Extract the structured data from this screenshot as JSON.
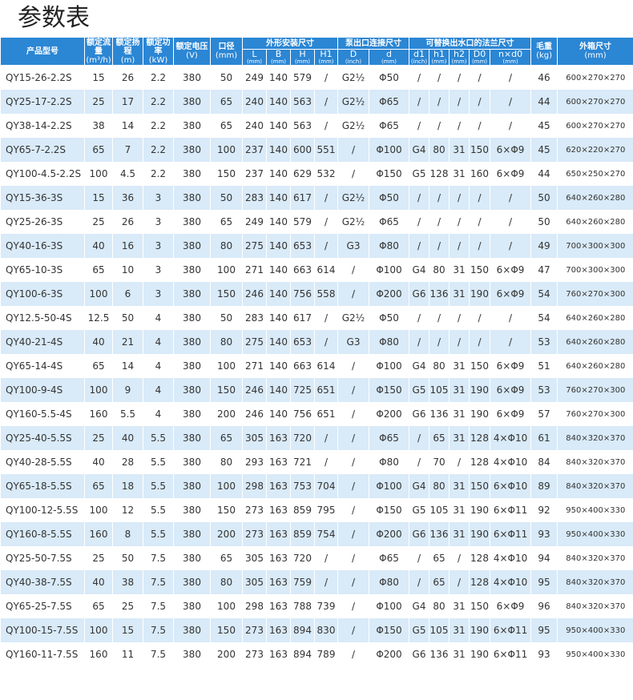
{
  "title": "参数表",
  "table": {
    "columns": [
      {
        "label": "产品型号"
      },
      {
        "label": "额定流量",
        "unit": "(m³/h)"
      },
      {
        "label": "额定扬程",
        "unit": "(m)"
      },
      {
        "label": "额定功率",
        "unit": "(kW)"
      },
      {
        "label": "额定电压",
        "unit": "(V)"
      },
      {
        "label": "口径",
        "unit": "(mm)"
      },
      {
        "label": "外形安装尺寸",
        "sub": [
          {
            "label": "L",
            "unit": "(mm)"
          },
          {
            "label": "B",
            "unit": "(mm)"
          },
          {
            "label": "H",
            "unit": "(mm)"
          },
          {
            "label": "H1",
            "unit": "(mm)"
          }
        ]
      },
      {
        "label": "泵出口连接尺寸",
        "sub": [
          {
            "label": "D",
            "unit": "(inch)"
          },
          {
            "label": "d",
            "unit": "(mm)"
          }
        ]
      },
      {
        "label": "可替换出水口的法兰尺寸",
        "sub": [
          {
            "label": "d1",
            "unit": "(inch)"
          },
          {
            "label": "h1",
            "unit": "(mm)"
          },
          {
            "label": "h2",
            "unit": "(mm)"
          },
          {
            "label": "D0",
            "unit": "(mm)"
          },
          {
            "label": "n×d0",
            "unit": "(mm)"
          }
        ]
      },
      {
        "label": "毛重",
        "unit": "(kg)"
      },
      {
        "label": "外箱尺寸",
        "unit": "(mm)"
      }
    ],
    "rows": [
      [
        "QY15-26-2.2S",
        "15",
        "26",
        "2.2",
        "380",
        "50",
        "249",
        "140",
        "579",
        "/",
        "G2½",
        "Φ50",
        "/",
        "/",
        "/",
        "/",
        "/",
        "46",
        "600×270×270"
      ],
      [
        "QY25-17-2.2S",
        "25",
        "17",
        "2.2",
        "380",
        "65",
        "240",
        "140",
        "563",
        "/",
        "G2½",
        "Φ65",
        "/",
        "/",
        "/",
        "/",
        "/",
        "44",
        "600×270×270"
      ],
      [
        "QY38-14-2.2S",
        "38",
        "14",
        "2.2",
        "380",
        "65",
        "240",
        "140",
        "563",
        "/",
        "G2½",
        "Φ65",
        "/",
        "/",
        "/",
        "/",
        "/",
        "45",
        "600×270×270"
      ],
      [
        "QY65-7-2.2S",
        "65",
        "7",
        "2.2",
        "380",
        "100",
        "237",
        "140",
        "600",
        "551",
        "/",
        "Φ100",
        "G4",
        "80",
        "31",
        "150",
        "6×Φ9",
        "45",
        "620×220×270"
      ],
      [
        "QY100-4.5-2.2S",
        "100",
        "4.5",
        "2.2",
        "380",
        "150",
        "237",
        "140",
        "629",
        "532",
        "/",
        "Φ150",
        "G5",
        "128",
        "31",
        "160",
        "6×Φ9",
        "44",
        "650×250×270"
      ],
      [
        "QY15-36-3S",
        "15",
        "36",
        "3",
        "380",
        "50",
        "283",
        "140",
        "617",
        "/",
        "G2½",
        "Φ50",
        "/",
        "/",
        "/",
        "/",
        "/",
        "50",
        "640×260×280"
      ],
      [
        "QY25-26-3S",
        "25",
        "26",
        "3",
        "380",
        "65",
        "249",
        "140",
        "579",
        "/",
        "G2½",
        "Φ65",
        "/",
        "/",
        "/",
        "/",
        "/",
        "50",
        "640×260×280"
      ],
      [
        "QY40-16-3S",
        "40",
        "16",
        "3",
        "380",
        "80",
        "275",
        "140",
        "653",
        "/",
        "G3",
        "Φ80",
        "/",
        "/",
        "/",
        "/",
        "/",
        "49",
        "700×300×300"
      ],
      [
        "QY65-10-3S",
        "65",
        "10",
        "3",
        "380",
        "100",
        "271",
        "140",
        "663",
        "614",
        "/",
        "Φ100",
        "G4",
        "80",
        "31",
        "150",
        "6×Φ9",
        "47",
        "700×300×300"
      ],
      [
        "QY100-6-3S",
        "100",
        "6",
        "3",
        "380",
        "150",
        "246",
        "140",
        "756",
        "558",
        "/",
        "Φ200",
        "G6",
        "136",
        "31",
        "190",
        "6×Φ9",
        "54",
        "760×270×300"
      ],
      [
        "QY12.5-50-4S",
        "12.5",
        "50",
        "4",
        "380",
        "50",
        "283",
        "140",
        "617",
        "/",
        "G2½",
        "Φ50",
        "/",
        "/",
        "/",
        "/",
        "/",
        "54",
        "640×260×280"
      ],
      [
        "QY40-21-4S",
        "40",
        "21",
        "4",
        "380",
        "80",
        "275",
        "140",
        "653",
        "/",
        "G3",
        "Φ80",
        "/",
        "/",
        "/",
        "/",
        "/",
        "53",
        "640×260×280"
      ],
      [
        "QY65-14-4S",
        "65",
        "14",
        "4",
        "380",
        "100",
        "271",
        "140",
        "663",
        "614",
        "/",
        "Φ100",
        "G4",
        "80",
        "31",
        "150",
        "6×Φ9",
        "51",
        "640×260×280"
      ],
      [
        "QY100-9-4S",
        "100",
        "9",
        "4",
        "380",
        "150",
        "246",
        "140",
        "725",
        "651",
        "/",
        "Φ150",
        "G5",
        "105",
        "31",
        "190",
        "6×Φ9",
        "53",
        "760×270×300"
      ],
      [
        "QY160-5.5-4S",
        "160",
        "5.5",
        "4",
        "380",
        "200",
        "246",
        "140",
        "756",
        "651",
        "/",
        "Φ200",
        "G6",
        "136",
        "31",
        "190",
        "6×Φ9",
        "57",
        "760×270×300"
      ],
      [
        "QY25-40-5.5S",
        "25",
        "40",
        "5.5",
        "380",
        "65",
        "305",
        "163",
        "720",
        "/",
        "/",
        "Φ65",
        "/",
        "65",
        "31",
        "128",
        "4×Φ10",
        "61",
        "840×320×370"
      ],
      [
        "QY40-28-5.5S",
        "40",
        "28",
        "5.5",
        "380",
        "80",
        "293",
        "163",
        "721",
        "/",
        "/",
        "Φ80",
        "/",
        "70",
        "/",
        "128",
        "4×Φ10",
        "84",
        "840×320×370"
      ],
      [
        "QY65-18-5.5S",
        "65",
        "18",
        "5.5",
        "380",
        "100",
        "298",
        "163",
        "753",
        "704",
        "/",
        "Φ100",
        "G4",
        "80",
        "31",
        "150",
        "6×Φ10",
        "89",
        "840×320×370"
      ],
      [
        "QY100-12-5.5S",
        "100",
        "12",
        "5.5",
        "380",
        "150",
        "273",
        "163",
        "859",
        "795",
        "/",
        "Φ150",
        "G5",
        "105",
        "31",
        "190",
        "6×Φ11",
        "92",
        "950×400×330"
      ],
      [
        "QY160-8-5.5S",
        "160",
        "8",
        "5.5",
        "380",
        "200",
        "273",
        "163",
        "859",
        "754",
        "/",
        "Φ200",
        "G6",
        "136",
        "31",
        "190",
        "6×Φ11",
        "93",
        "950×400×330"
      ],
      [
        "QY25-50-7.5S",
        "25",
        "50",
        "7.5",
        "380",
        "65",
        "305",
        "163",
        "720",
        "/",
        "/",
        "Φ65",
        "/",
        "65",
        "/",
        "128",
        "4×Φ10",
        "94",
        "840×320×370"
      ],
      [
        "QY40-38-7.5S",
        "40",
        "38",
        "7.5",
        "380",
        "80",
        "305",
        "163",
        "759",
        "/",
        "/",
        "Φ80",
        "/",
        "65",
        "/",
        "128",
        "4×Φ10",
        "95",
        "840×320×370"
      ],
      [
        "QY65-25-7.5S",
        "65",
        "25",
        "7.5",
        "380",
        "100",
        "298",
        "163",
        "788",
        "739",
        "/",
        "Φ100",
        "G4",
        "80",
        "31",
        "150",
        "6×Φ9",
        "96",
        "840×320×370"
      ],
      [
        "QY100-15-7.5S",
        "100",
        "15",
        "7.5",
        "380",
        "150",
        "273",
        "163",
        "894",
        "830",
        "/",
        "Φ150",
        "G5",
        "105",
        "31",
        "190",
        "6×Φ11",
        "95",
        "950×400×330"
      ],
      [
        "QY160-11-7.5S",
        "160",
        "11",
        "7.5",
        "380",
        "200",
        "273",
        "163",
        "894",
        "789",
        "/",
        "Φ200",
        "G6",
        "136",
        "31",
        "190",
        "6×Φ11",
        "93",
        "950×400×330"
      ]
    ]
  }
}
